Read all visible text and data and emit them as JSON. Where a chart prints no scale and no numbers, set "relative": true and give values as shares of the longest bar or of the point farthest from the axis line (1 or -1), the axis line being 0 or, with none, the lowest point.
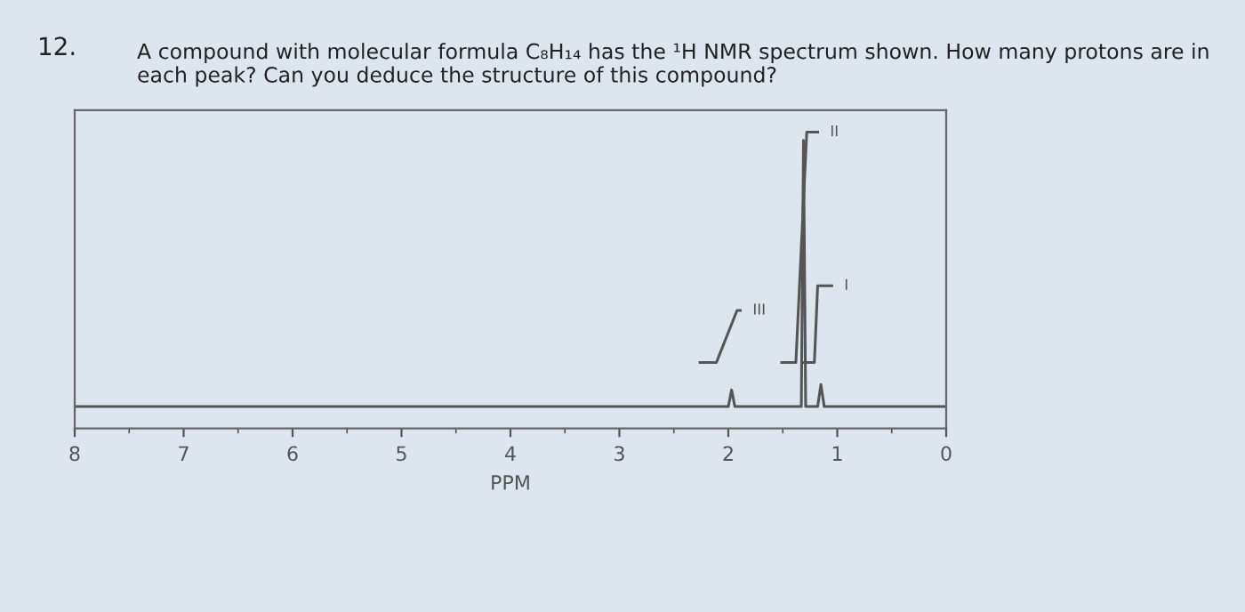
{
  "chart_data": {
    "type": "line",
    "title": "A compound with molecular formula C₈H₁₄ has the ¹H NMR spectrum shown. How many protons are in each peak? Can you deduce the structure of this compound?",
    "xlabel": "PPM",
    "relative": true,
    "xlim": [
      8,
      0
    ],
    "xticks": [
      8,
      7,
      6,
      5,
      4,
      3,
      2,
      1,
      0
    ],
    "grid": false,
    "annotations": [
      "12.",
      {
        "text": "III",
        "x": 1.89,
        "y": 0.35
      },
      {
        "text": "II",
        "x": 1.18,
        "y": 1.0
      },
      {
        "text": "I",
        "x": 1.05,
        "y": 0.44
      }
    ],
    "series": [
      {
        "color": "#555555",
        "x": [
          8,
          2.0,
          1.97,
          1.94,
          1.33,
          1.31,
          1.29,
          1.18,
          1.15,
          1.12,
          0
        ],
        "values": [
          0,
          0,
          0.06,
          0,
          0,
          0.97,
          0,
          0,
          0.08,
          0,
          0
        ]
      },
      {
        "color": "#555555",
        "x": [
          2.26,
          2.11,
          1.92,
          1.89
        ],
        "values": [
          0.16,
          0.16,
          0.35,
          0.35
        ]
      },
      {
        "color": "#555555",
        "x": [
          1.51,
          1.38,
          1.28,
          1.18
        ],
        "values": [
          0.16,
          0.16,
          1.0,
          1.0
        ]
      },
      {
        "color": "#555555",
        "x": [
          1.31,
          1.21,
          1.18,
          1.05
        ],
        "values": [
          0.16,
          0.16,
          0.44,
          0.44
        ]
      }
    ]
  }
}
